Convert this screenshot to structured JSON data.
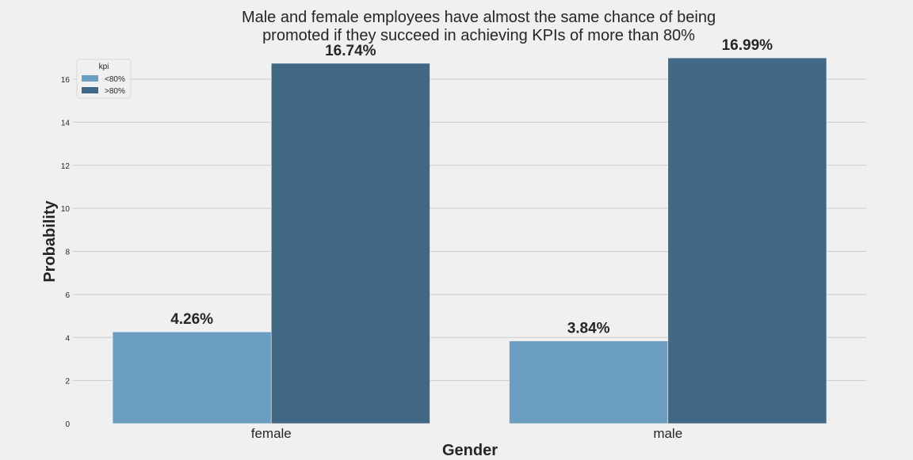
{
  "chart_data": {
    "type": "bar",
    "title_lines": [
      "Male and female employees have almost the same chance of being",
      "promoted if they succeed in achieving KPIs of more than 80%"
    ],
    "xlabel": "Gender",
    "ylabel": "Probability",
    "categories": [
      "female",
      "male"
    ],
    "series": [
      {
        "name": "<80%",
        "values": [
          4.26,
          3.84
        ],
        "labels": [
          "4.26%",
          "3.84%"
        ],
        "color": "#6b9ec0"
      },
      {
        "name": ">80%",
        "values": [
          16.74,
          16.99
        ],
        "labels": [
          "16.74%",
          "16.99%"
        ],
        "color": "#416986"
      }
    ],
    "legend": {
      "title": "kpi",
      "placement": "top-left"
    },
    "ylim": [
      0,
      17.4
    ],
    "yticks": [
      0,
      2,
      4,
      6,
      8,
      10,
      12,
      14,
      16
    ],
    "grid": "horizontal",
    "colors": {
      "background": "#f0f0f0",
      "grid": "#cbcbcb",
      "text": "#262626"
    }
  }
}
